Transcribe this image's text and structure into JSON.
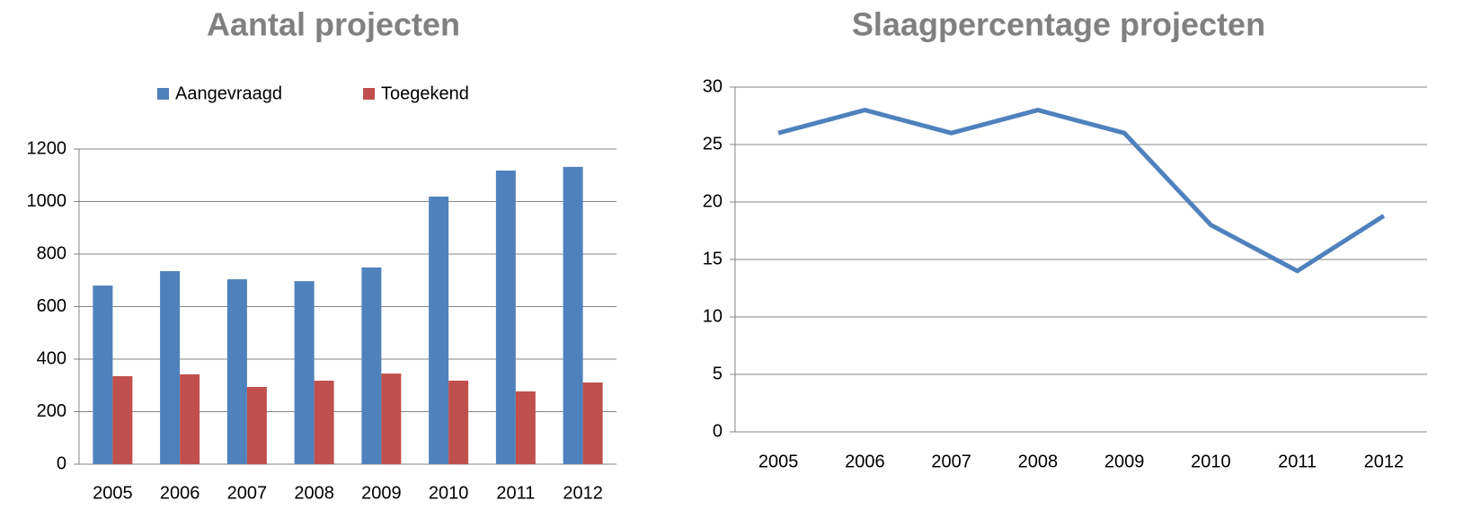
{
  "chart_data": [
    {
      "type": "bar",
      "title": "Aantal projecten",
      "categories": [
        "2005",
        "2006",
        "2007",
        "2008",
        "2009",
        "2010",
        "2011",
        "2012"
      ],
      "series": [
        {
          "name": "Aangevraagd",
          "color": "#4f81bd",
          "values": [
            680,
            735,
            704,
            697,
            749,
            1019,
            1118,
            1132
          ]
        },
        {
          "name": "Toegekend",
          "color": "#c0504d",
          "values": [
            335,
            342,
            294,
            318,
            345,
            318,
            277,
            311
          ]
        }
      ],
      "ylim": [
        0,
        1200
      ],
      "yticks": [
        0,
        200,
        400,
        600,
        800,
        1000,
        1200
      ],
      "grid": true,
      "legend": "top"
    },
    {
      "type": "line",
      "title": "Slaagpercentage projecten",
      "categories": [
        "2005",
        "2006",
        "2007",
        "2008",
        "2009",
        "2010",
        "2011",
        "2012"
      ],
      "series": [
        {
          "name": "Slaagpercentage",
          "color": "#4f81bd",
          "values": [
            26,
            28,
            26,
            28,
            26,
            18,
            14,
            18.8
          ]
        }
      ],
      "ylim": [
        0,
        30
      ],
      "yticks": [
        0,
        5,
        10,
        15,
        20,
        25,
        30
      ],
      "grid": true
    }
  ]
}
